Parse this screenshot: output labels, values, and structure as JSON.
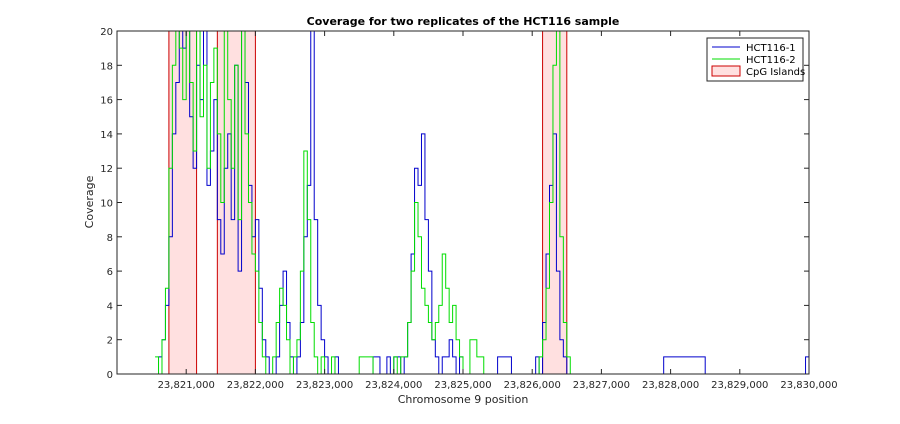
{
  "chart_data": {
    "type": "line",
    "title": "Coverage for two replicates of the HCT116 sample",
    "xlabel": "Chromosome 9 position",
    "ylabel": "Coverage",
    "xlim": [
      23820000,
      23830000
    ],
    "ylim": [
      0,
      20
    ],
    "x_ticks": [
      23821000,
      23822000,
      23823000,
      23824000,
      23825000,
      23826000,
      23827000,
      23828000,
      23829000,
      23830000
    ],
    "x_tick_labels": [
      "23,821,000",
      "23,822,000",
      "23,823,000",
      "23,824,000",
      "23,825,000",
      "23,826,000",
      "23,827,000",
      "23,828,000",
      "23,829,000",
      "23,830,000"
    ],
    "y_ticks": [
      0,
      2,
      4,
      6,
      8,
      10,
      12,
      14,
      16,
      18,
      20
    ],
    "y_tick_labels": [
      "0",
      "2",
      "4",
      "6",
      "8",
      "10",
      "12",
      "14",
      "16",
      "18",
      "20"
    ],
    "grid": false,
    "legend_position": "top-right",
    "series": [
      {
        "name": "HCT116-1",
        "color": "#0000cc",
        "x": [
          23820550,
          23820600,
          23820650,
          23820700,
          23820750,
          23820800,
          23820850,
          23820900,
          23820950,
          23821000,
          23821050,
          23821100,
          23821150,
          23821200,
          23821250,
          23821300,
          23821350,
          23821400,
          23821450,
          23821500,
          23821550,
          23821600,
          23821650,
          23821700,
          23821750,
          23821800,
          23821850,
          23821900,
          23821950,
          23822000,
          23822050,
          23822100,
          23822150,
          23822200,
          23822250,
          23822300,
          23822350,
          23822400,
          23822450,
          23822500,
          23822550,
          23822600,
          23822650,
          23822700,
          23822750,
          23822800,
          23822850,
          23822900,
          23822950,
          23823000,
          23823050,
          23823100,
          23823150,
          23823200,
          23823400,
          23823500,
          23823700,
          23823800,
          23823900,
          23823950,
          23824000,
          23824050,
          23824100,
          23824150,
          23824200,
          23824250,
          23824300,
          23824350,
          23824400,
          23824450,
          23824500,
          23824550,
          23824600,
          23824650,
          23824700,
          23824750,
          23824800,
          23824850,
          23824900,
          23824950,
          23825000,
          23825100,
          23825200,
          23825500,
          23825700,
          23825900,
          23826000,
          23826050,
          23826100,
          23826150,
          23826200,
          23826250,
          23826300,
          23826350,
          23826400,
          23826450,
          23826500,
          23826550,
          23826600,
          23827000,
          23827500,
          23827850,
          23827900,
          23828500,
          23829000,
          23829500,
          23829900,
          23829950,
          23830000
        ],
        "y": [
          0,
          1,
          2,
          4,
          8,
          14,
          17,
          20,
          19,
          20,
          15,
          12,
          18,
          16,
          20,
          11,
          13,
          16,
          9,
          7,
          12,
          14,
          9,
          18,
          6,
          20,
          17,
          11,
          8,
          9,
          5,
          2,
          1,
          0,
          0,
          1,
          4,
          6,
          3,
          1,
          0,
          1,
          3,
          8,
          11,
          20,
          9,
          4,
          2,
          1,
          0,
          0,
          1,
          0,
          0,
          0,
          1,
          0,
          1,
          0,
          1,
          1,
          0,
          1,
          3,
          7,
          12,
          11,
          14,
          9,
          6,
          2,
          1,
          0,
          1,
          1,
          2,
          1,
          0,
          1,
          0,
          0,
          0,
          1,
          0,
          0,
          0,
          1,
          0,
          3,
          7,
          11,
          14,
          6,
          2,
          1,
          0,
          0,
          0,
          0,
          0,
          0,
          1,
          0,
          0,
          0,
          0,
          1,
          0
        ]
      },
      {
        "name": "HCT116-2",
        "color": "#00dd00",
        "x": [
          23820550,
          23820600,
          23820650,
          23820700,
          23820750,
          23820800,
          23820850,
          23820900,
          23820950,
          23821000,
          23821050,
          23821100,
          23821150,
          23821200,
          23821250,
          23821300,
          23821350,
          23821400,
          23821450,
          23821500,
          23821550,
          23821600,
          23821650,
          23821700,
          23821750,
          23821800,
          23821850,
          23821900,
          23821950,
          23822000,
          23822050,
          23822100,
          23822150,
          23822200,
          23822250,
          23822300,
          23822350,
          23822400,
          23822450,
          23822500,
          23822550,
          23822600,
          23822650,
          23822700,
          23822750,
          23822800,
          23822850,
          23822900,
          23822950,
          23823000,
          23823050,
          23823100,
          23823150,
          23823200,
          23823300,
          23823500,
          23823700,
          23823900,
          23824000,
          23824050,
          23824100,
          23824150,
          23824200,
          23824250,
          23824300,
          23824350,
          23824400,
          23824450,
          23824500,
          23824550,
          23824600,
          23824650,
          23824700,
          23824750,
          23824800,
          23824850,
          23824900,
          23824950,
          23825000,
          23825100,
          23825200,
          23825300,
          23825500,
          23825800,
          23826000,
          23826050,
          23826100,
          23826150,
          23826200,
          23826250,
          23826300,
          23826350,
          23826400,
          23826450,
          23826500,
          23826550,
          23826600,
          23827000,
          23828000,
          23829000,
          23830000
        ],
        "y": [
          1,
          0,
          2,
          5,
          12,
          18,
          20,
          19,
          16,
          20,
          17,
          13,
          20,
          15,
          18,
          12,
          17,
          19,
          14,
          10,
          20,
          16,
          12,
          18,
          9,
          20,
          14,
          10,
          7,
          6,
          3,
          1,
          0,
          0,
          1,
          3,
          5,
          4,
          2,
          0,
          1,
          2,
          6,
          13,
          9,
          3,
          1,
          0,
          1,
          0,
          0,
          1,
          0,
          0,
          0,
          1,
          0,
          0,
          1,
          0,
          1,
          1,
          3,
          6,
          10,
          8,
          5,
          4,
          3,
          2,
          3,
          4,
          7,
          5,
          3,
          4,
          2,
          1,
          0,
          2,
          1,
          0,
          0,
          0,
          0,
          0,
          1,
          2,
          5,
          10,
          18,
          20,
          8,
          3,
          1,
          0,
          0,
          0,
          0,
          0,
          0
        ]
      }
    ],
    "regions": {
      "name": "CpG Islands",
      "fill": "#ffe0e0",
      "edge": "#cc0000",
      "spans": [
        [
          23820750,
          23821150
        ],
        [
          23821450,
          23822000
        ],
        [
          23826150,
          23826500
        ]
      ]
    }
  },
  "legend": {
    "entries": [
      "HCT116-1",
      "HCT116-2",
      "CpG Islands"
    ]
  }
}
